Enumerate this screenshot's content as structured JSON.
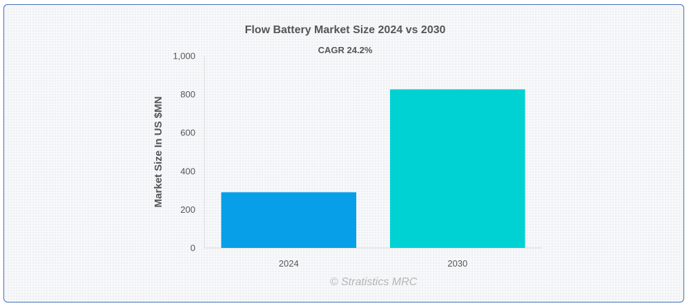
{
  "chart_data": {
    "type": "bar",
    "title": "Flow Battery Market Size 2024 vs 2030",
    "subtitle": "CAGR 24.2%",
    "ylabel": "Market Size In US $MN",
    "xlabel": "",
    "categories": [
      "2024",
      "2030"
    ],
    "values": [
      290,
      826
    ],
    "colors": [
      "#069fe8",
      "#00d2d3"
    ],
    "ylim": [
      0,
      1000
    ],
    "yticks": [
      0,
      200,
      400,
      600,
      800,
      1000
    ],
    "ytick_labels": [
      "0",
      "200",
      "400",
      "600",
      "800",
      "1,000"
    ],
    "grid": false,
    "legend": "none"
  },
  "credit": "© Stratistics MRC"
}
